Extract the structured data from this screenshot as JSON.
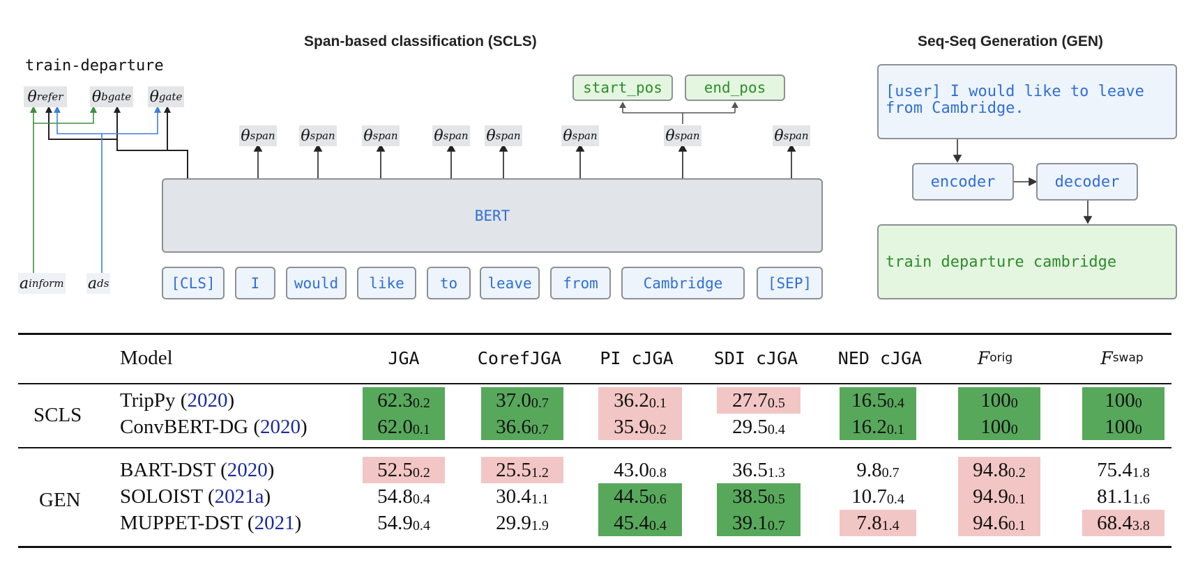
{
  "figure": {
    "scls_title": "Span-based classification (SCLS)",
    "gen_title": "Seq-Seq Generation (GEN)",
    "slot_name": "train-departure",
    "gates": [
      {
        "base": "θ",
        "sub": "refer"
      },
      {
        "base": "θ",
        "sub": "bgate"
      },
      {
        "base": "θ",
        "sub": "gate"
      }
    ],
    "span_heads": [
      {
        "base": "θ",
        "sub": "span"
      },
      {
        "base": "θ",
        "sub": "span"
      },
      {
        "base": "θ",
        "sub": "span"
      },
      {
        "base": "θ",
        "sub": "span"
      },
      {
        "base": "θ",
        "sub": "span"
      },
      {
        "base": "θ",
        "sub": "span"
      },
      {
        "base": "θ",
        "sub": "span"
      },
      {
        "base": "θ",
        "sub": "span"
      }
    ],
    "start_pos": "start_pos",
    "end_pos": "end_pos",
    "bert": "BERT",
    "tokens": [
      "[CLS]",
      "I",
      "would",
      "like",
      "to",
      "leave",
      "from",
      "Cambridge",
      "[SEP]"
    ],
    "a_inform": {
      "base": "a",
      "sub": "inform"
    },
    "a_ds": {
      "base": "a",
      "sub": "ds"
    },
    "gen_input": "[user] I would like to leave from Cambridge.",
    "encoder": "encoder",
    "decoder": "decoder",
    "gen_output": "train departure cambridge",
    "colors": {
      "blue_arrow": "#3f7fdd",
      "green_arrow": "#3d8f3d",
      "good": "#58a85c",
      "bad": "#f2c6c4"
    }
  },
  "table": {
    "headers": {
      "model": "Model",
      "jga": "JGA",
      "coref": "CorefJGA",
      "pi": "PI cJGA",
      "sdi": "SDI cJGA",
      "ned": "NED cJGA",
      "forig": {
        "base": "F",
        "sub": "orig"
      },
      "fswap": {
        "base": "F",
        "sub": "swap"
      }
    },
    "groups": [
      {
        "label": "SCLS",
        "rows": [
          {
            "name": "TripPy (",
            "cite": "2020",
            "close": ")",
            "cells": [
              {
                "v": "62.3",
                "s": "0.2",
                "c": "green"
              },
              {
                "v": "37.0",
                "s": "0.7",
                "c": "green"
              },
              {
                "v": "36.2",
                "s": "0.1",
                "c": "red"
              },
              {
                "v": "27.7",
                "s": "0.5",
                "c": "red"
              },
              {
                "v": "16.5",
                "s": "0.4",
                "c": "green"
              },
              {
                "v": "100",
                "s": "0",
                "c": "green"
              },
              {
                "v": "100",
                "s": "0",
                "c": "green"
              }
            ]
          },
          {
            "name": "ConvBERT-DG (",
            "cite": "2020",
            "close": ")",
            "cells": [
              {
                "v": "62.0",
                "s": "0.1",
                "c": "green"
              },
              {
                "v": "36.6",
                "s": "0.7",
                "c": "green"
              },
              {
                "v": "35.9",
                "s": "0.2",
                "c": "red"
              },
              {
                "v": "29.5",
                "s": "0.4",
                "c": ""
              },
              {
                "v": "16.2",
                "s": "0.1",
                "c": "green"
              },
              {
                "v": "100",
                "s": "0",
                "c": "green"
              },
              {
                "v": "100",
                "s": "0",
                "c": "green"
              }
            ]
          }
        ]
      },
      {
        "label": "GEN",
        "rows": [
          {
            "name": "BART-DST (",
            "cite": "2020",
            "close": ")",
            "cells": [
              {
                "v": "52.5",
                "s": "0.2",
                "c": "red"
              },
              {
                "v": "25.5",
                "s": "1.2",
                "c": "red"
              },
              {
                "v": "43.0",
                "s": "0.8",
                "c": ""
              },
              {
                "v": "36.5",
                "s": "1.3",
                "c": ""
              },
              {
                "v": "9.8",
                "s": "0.7",
                "c": ""
              },
              {
                "v": "94.8",
                "s": "0.2",
                "c": "red"
              },
              {
                "v": "75.4",
                "s": "1.8",
                "c": ""
              }
            ]
          },
          {
            "name": "SOLOIST (",
            "cite": "2021a",
            "close": ")",
            "cells": [
              {
                "v": "54.8",
                "s": "0.4",
                "c": ""
              },
              {
                "v": "30.4",
                "s": "1.1",
                "c": ""
              },
              {
                "v": "44.5",
                "s": "0.6",
                "c": "green"
              },
              {
                "v": "38.5",
                "s": "0.5",
                "c": "green"
              },
              {
                "v": "10.7",
                "s": "0.4",
                "c": ""
              },
              {
                "v": "94.9",
                "s": "0.1",
                "c": "red"
              },
              {
                "v": "81.1",
                "s": "1.6",
                "c": ""
              }
            ]
          },
          {
            "name": "MUPPET-DST (",
            "cite": "2021",
            "close": ")",
            "cells": [
              {
                "v": "54.9",
                "s": "0.4",
                "c": ""
              },
              {
                "v": "29.9",
                "s": "1.9",
                "c": ""
              },
              {
                "v": "45.4",
                "s": "0.4",
                "c": "green"
              },
              {
                "v": "39.1",
                "s": "0.7",
                "c": "green"
              },
              {
                "v": "7.8",
                "s": "1.4",
                "c": "red"
              },
              {
                "v": "94.6",
                "s": "0.1",
                "c": "red"
              },
              {
                "v": "68.4",
                "s": "3.8",
                "c": "red"
              }
            ]
          }
        ]
      }
    ]
  }
}
